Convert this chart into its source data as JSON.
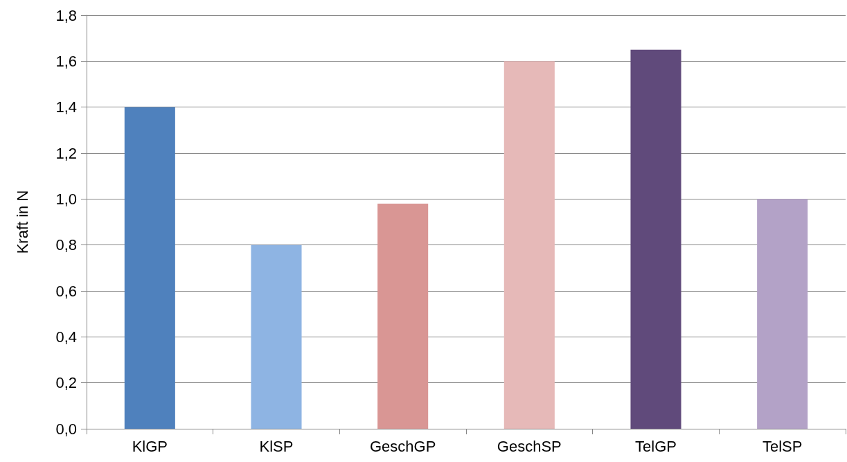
{
  "chart_data": {
    "type": "bar",
    "ylabel": "Kraft in N",
    "categories": [
      "KlGP",
      "KlSP",
      "GeschGP",
      "GeschSP",
      "TelGP",
      "TelSP"
    ],
    "values": [
      1.4,
      0.8,
      0.98,
      1.6,
      1.65,
      1.0
    ],
    "colors": [
      "#4f81bd",
      "#8eb4e3",
      "#d99694",
      "#e6b9b8",
      "#604a7b",
      "#b3a2c7"
    ],
    "ylim": [
      0,
      1.8
    ],
    "yticks": [
      {
        "value": 0,
        "label": "0,0"
      },
      {
        "value": 0.2,
        "label": "0,2"
      },
      {
        "value": 0.4,
        "label": "0,4"
      },
      {
        "value": 0.6,
        "label": "0,6"
      },
      {
        "value": 0.8,
        "label": "0,8"
      },
      {
        "value": 1.0,
        "label": "1,0"
      },
      {
        "value": 1.2,
        "label": "1,2"
      },
      {
        "value": 1.4,
        "label": "1,4"
      },
      {
        "value": 1.6,
        "label": "1,6"
      },
      {
        "value": 1.8,
        "label": "1,8"
      }
    ],
    "grid": "y"
  }
}
